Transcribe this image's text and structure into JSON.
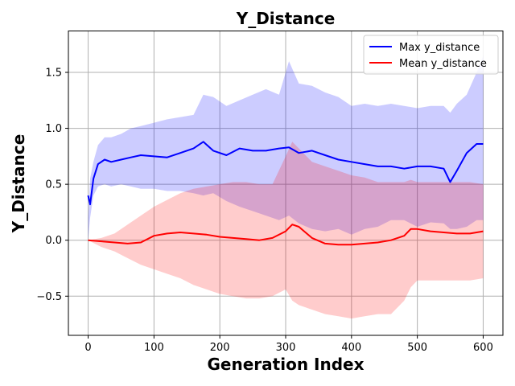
{
  "chart_data": {
    "type": "line",
    "title": "Y_Distance",
    "xlabel": "Generation Index",
    "ylabel": "Y_Distance",
    "xlim": [
      -30,
      630
    ],
    "ylim": [
      -0.85,
      1.87
    ],
    "xticks": [
      0,
      100,
      200,
      300,
      400,
      500,
      600
    ],
    "xtick_labels": [
      "0",
      "100",
      "200",
      "300",
      "400",
      "500",
      "600"
    ],
    "yticks": [
      -0.5,
      0.0,
      0.5,
      1.0,
      1.5
    ],
    "ytick_labels": [
      "−0.5",
      "0.0",
      "0.5",
      "1.0",
      "1.5"
    ],
    "grid": true,
    "legend_position": "top-right",
    "series": [
      {
        "name": "Max y_distance",
        "color": "#0000ff",
        "band_color": "#0000ff",
        "band_opacity": 0.2,
        "x": [
          0,
          3,
          8,
          15,
          25,
          35,
          50,
          65,
          80,
          100,
          120,
          140,
          160,
          175,
          190,
          210,
          230,
          250,
          270,
          290,
          305,
          320,
          340,
          360,
          380,
          400,
          420,
          440,
          460,
          480,
          500,
          520,
          540,
          550,
          560,
          575,
          590,
          600
        ],
        "values": [
          0.4,
          0.32,
          0.55,
          0.68,
          0.72,
          0.7,
          0.72,
          0.74,
          0.76,
          0.75,
          0.74,
          0.78,
          0.82,
          0.88,
          0.8,
          0.76,
          0.82,
          0.8,
          0.8,
          0.82,
          0.83,
          0.78,
          0.8,
          0.76,
          0.72,
          0.7,
          0.68,
          0.66,
          0.66,
          0.64,
          0.66,
          0.66,
          0.64,
          0.52,
          0.62,
          0.78,
          0.86,
          0.86
        ],
        "upper": [
          0.2,
          0.55,
          0.7,
          0.85,
          0.92,
          0.92,
          0.95,
          1.0,
          1.02,
          1.05,
          1.08,
          1.1,
          1.12,
          1.3,
          1.28,
          1.2,
          1.25,
          1.3,
          1.35,
          1.3,
          1.6,
          1.4,
          1.38,
          1.32,
          1.28,
          1.2,
          1.22,
          1.2,
          1.22,
          1.2,
          1.18,
          1.2,
          1.2,
          1.14,
          1.22,
          1.3,
          1.5,
          1.65
        ],
        "lower": [
          0.0,
          0.2,
          0.4,
          0.48,
          0.5,
          0.48,
          0.5,
          0.48,
          0.46,
          0.46,
          0.44,
          0.44,
          0.42,
          0.4,
          0.42,
          0.35,
          0.3,
          0.26,
          0.22,
          0.18,
          0.22,
          0.15,
          0.1,
          0.08,
          0.1,
          0.05,
          0.1,
          0.12,
          0.18,
          0.18,
          0.12,
          0.16,
          0.15,
          0.1,
          0.1,
          0.12,
          0.18,
          0.18
        ]
      },
      {
        "name": "Mean y_distance",
        "color": "#ff0000",
        "band_color": "#ff0000",
        "band_opacity": 0.2,
        "x": [
          0,
          20,
          40,
          60,
          80,
          100,
          120,
          140,
          160,
          180,
          200,
          220,
          240,
          260,
          280,
          300,
          310,
          320,
          340,
          360,
          380,
          400,
          420,
          440,
          460,
          480,
          490,
          500,
          520,
          540,
          560,
          580,
          600
        ],
        "values": [
          0.0,
          -0.01,
          -0.02,
          -0.03,
          -0.02,
          0.04,
          0.06,
          0.07,
          0.06,
          0.05,
          0.03,
          0.02,
          0.01,
          0.0,
          0.02,
          0.08,
          0.14,
          0.12,
          0.02,
          -0.03,
          -0.04,
          -0.04,
          -0.03,
          -0.02,
          0.0,
          0.04,
          0.1,
          0.1,
          0.08,
          0.07,
          0.06,
          0.06,
          0.08
        ],
        "upper": [
          0.0,
          0.02,
          0.06,
          0.14,
          0.22,
          0.3,
          0.36,
          0.42,
          0.46,
          0.48,
          0.5,
          0.52,
          0.52,
          0.5,
          0.5,
          0.75,
          0.88,
          0.82,
          0.7,
          0.66,
          0.62,
          0.58,
          0.56,
          0.52,
          0.52,
          0.52,
          0.54,
          0.52,
          0.52,
          0.52,
          0.52,
          0.52,
          0.5
        ],
        "lower": [
          0.0,
          -0.06,
          -0.1,
          -0.16,
          -0.22,
          -0.26,
          -0.3,
          -0.34,
          -0.4,
          -0.44,
          -0.48,
          -0.5,
          -0.52,
          -0.52,
          -0.5,
          -0.44,
          -0.54,
          -0.58,
          -0.62,
          -0.66,
          -0.68,
          -0.7,
          -0.68,
          -0.66,
          -0.66,
          -0.54,
          -0.42,
          -0.36,
          -0.36,
          -0.36,
          -0.36,
          -0.36,
          -0.34
        ]
      }
    ]
  }
}
